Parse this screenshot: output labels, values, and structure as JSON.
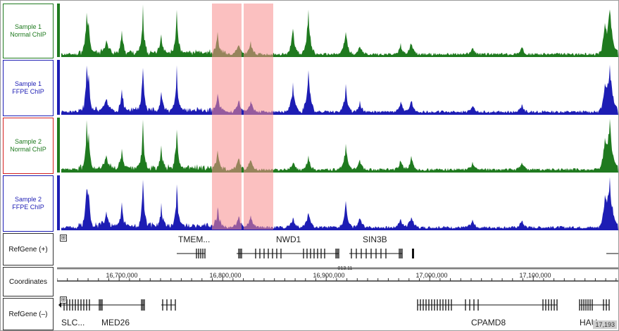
{
  "tracks": [
    {
      "line1": "Sample 1",
      "line2": "Normal ChIP",
      "color": "#1f7a1f",
      "seed": 11,
      "dip": 0.0
    },
    {
      "line1": "Sample 1",
      "line2": "FFPE ChIP",
      "color": "#1d1db4",
      "seed": 23,
      "dip": 0.0
    },
    {
      "line1": "Sample 2",
      "line2": "Normal ChIP",
      "color": "#1f7a1f",
      "seed": 37,
      "dip": 0.7
    },
    {
      "line1": "Sample 2",
      "line2": "FFPE ChIP",
      "color": "#1d1db4",
      "seed": 51,
      "dip": 0.6
    }
  ],
  "refgene_plus": {
    "label": "RefGene (+)",
    "genes": [
      "TMEM...",
      "NWD1",
      "SIN3B"
    ]
  },
  "coordinates": {
    "label": "Coordinates",
    "ticks": [
      "16,700,000",
      "16,800,000",
      "16,900,000",
      "17,000,000",
      "17,100,000"
    ],
    "center_tick": "013.11"
  },
  "refgene_minus": {
    "label": "RefGene (–)",
    "genes": [
      "SLC...",
      "MED26",
      "CPAMD8",
      "HAU..."
    ]
  },
  "expand_symbol": "⊞",
  "corner_value": "17,193",
  "colors": {
    "normal": "#1f7a1f",
    "ffpe": "#1d1db4",
    "highlight": "#f78c8c",
    "sample2_border": "#d42020"
  }
}
